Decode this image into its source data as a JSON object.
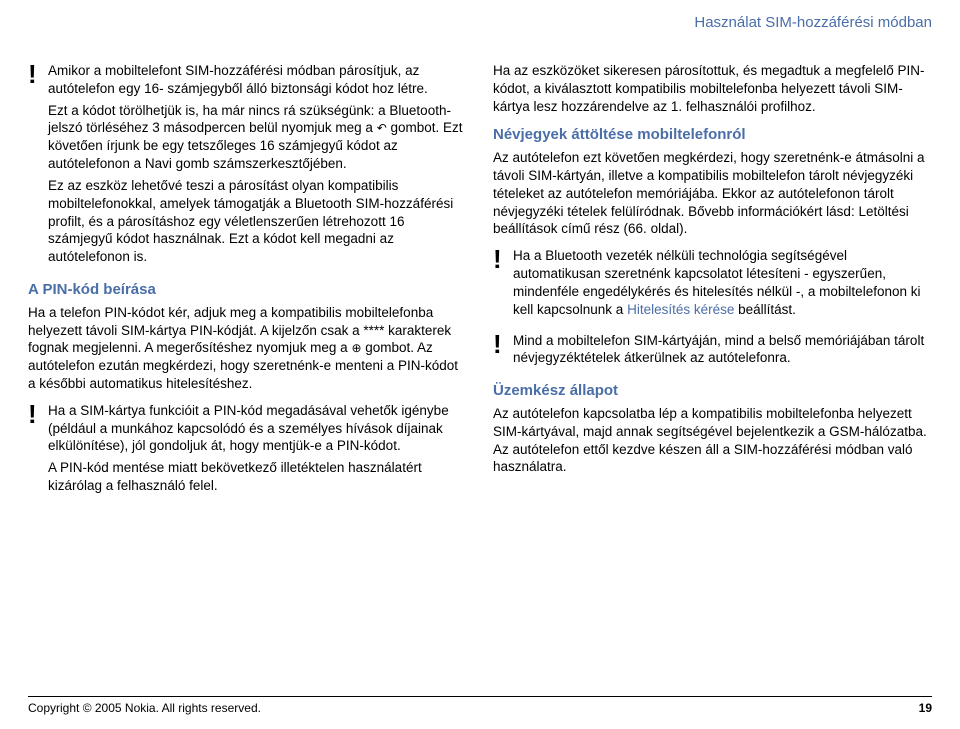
{
  "header": "Használat SIM-hozzáférési módban",
  "left": {
    "note1_p1": "Amikor a mobiltelefont SIM-hozzáférési módban párosítjuk, az autótelefon egy 16- számjegyből álló biztonsági kódot hoz létre.",
    "note1_p2_a": "Ezt a kódot törölhetjük is, ha már nincs rá szükségünk: a Bluetooth-jelszó törléséhez 3 másodpercen belül nyomjuk meg a ",
    "note1_p2_b": " gombot. Ezt követően írjunk be egy tetszőleges 16 számjegyű kódot az autótelefonon a Navi gomb számszerkesztőjében.",
    "note1_p3": "Ez az eszköz lehetővé teszi a párosítást olyan kompatibilis mobiltelefonokkal, amelyek támogatják a Bluetooth SIM-hozzáférési profilt, és a párosításhoz egy véletlenszerűen létrehozott 16 számjegyű kódot használnak. Ezt a kódot kell megadni az autótelefonon is.",
    "pin_title": "A PIN-kód beírása",
    "pin_p1_a": "Ha a telefon PIN-kódot kér, adjuk meg a kompatibilis mobiltelefonba helyezett távoli SIM-kártya PIN-kódját. A kijelzőn csak a **** karakterek fognak megjelenni. A megerősítéshez nyomjuk meg a ",
    "pin_p1_b": " gombot. Az autótelefon ezután megkérdezi, hogy szeretnénk-e menteni a PIN-kódot a későbbi automatikus hitelesítéshez.",
    "note2_p1": "Ha a SIM-kártya funkcióit a PIN-kód megadásával vehetők igénybe (például a munkához kapcsolódó és a személyes hívások díjainak elkülönítése), jól gondoljuk át, hogy mentjük-e a PIN-kódot.",
    "note2_p2": "A PIN-kód mentése miatt bekövetkező illetéktelen használatért kizárólag a felhasználó felel."
  },
  "right": {
    "p1": "Ha az eszközöket sikeresen párosítottuk, és megadtuk a megfelelő PIN-kódot, a kiválasztott kompatibilis mobiltelefonba helyezett távoli SIM-kártya lesz hozzárendelve az 1. felhasználói profilhoz.",
    "contacts_title": "Névjegyek áttöltése mobiltelefonról",
    "contacts_p1": "Az autótelefon ezt követően megkérdezi, hogy szeretnénk-e átmásolni a távoli SIM-kártyán, illetve a kompatibilis mobiltelefon tárolt névjegyzéki tételeket az autótelefon memóriájába. Ekkor az autótelefonon tárolt névjegyzéki tételek felülíródnak. Bővebb információkért lásd: Letöltési beállítások című rész (66. oldal).",
    "note3_a": "Ha a Bluetooth vezeték nélküli technológia segítségével automatikusan szeretnénk kapcsolatot létesíteni - egyszerűen, mindenféle engedélykérés és hitelesítés nélkül -, a mobiltelefonon ki kell kapcsolnunk a ",
    "note3_link": "Hitelesítés kérése",
    "note3_b": " beállítást.",
    "note4": "Mind a mobiltelefon SIM-kártyáján, mind a belső memóriájában tárolt névjegyzéktételek átkerülnek az autótelefonra.",
    "ready_title": "Üzemkész állapot",
    "ready_p1": "Az autótelefon kapcsolatba lép a kompatibilis mobiltelefonba helyezett SIM-kártyával, majd annak segítségével bejelentkezik a GSM-hálózatba. Az autótelefon ettől kezdve készen áll a SIM-hozzáférési módban való használatra."
  },
  "footer": {
    "copyright": "Copyright © 2005 Nokia. All rights reserved.",
    "page": "19"
  },
  "colors": {
    "accent": "#4a6ea8"
  }
}
